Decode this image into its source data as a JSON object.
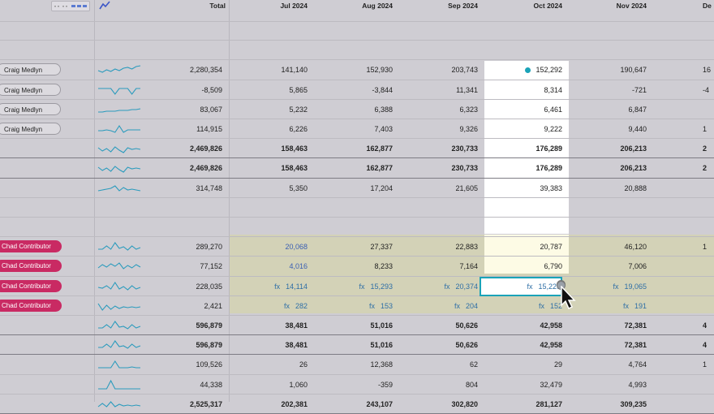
{
  "header": {
    "total_label": "Total",
    "months": [
      "Jul 2024",
      "Aug 2024",
      "Sep 2024",
      "Oct 2024",
      "Nov 2024",
      "De"
    ],
    "trend_icon": "trend-chart-icon",
    "view_toggle_icon": "view-toggle-icon"
  },
  "colors": {
    "grid_bg": "#d4d2d8",
    "contributor_band": "#d3d2b7",
    "highlight_column": "#ffffff",
    "highlight_yellow": "#fdfbe5",
    "pill_pink": "#c92a63",
    "accent_teal": "#1aa3b8",
    "sparkline": "#2b9bbd"
  },
  "rows": [
    {
      "kind": "blank"
    },
    {
      "kind": "blank"
    },
    {
      "kind": "data",
      "owner": "Craig Medlyn",
      "pill": "grey",
      "total": "2,280,354",
      "values": [
        "141,140",
        "152,930",
        "203,743",
        "152,292",
        "190,647",
        "16"
      ],
      "oct_marker": true,
      "spark": [
        10,
        12,
        9,
        11,
        8,
        10,
        7,
        6,
        8,
        5,
        4
      ]
    },
    {
      "kind": "data",
      "owner": "Craig Medlyn",
      "pill": "grey",
      "total": "-8,509",
      "values": [
        "5,865",
        "-3,844",
        "11,341",
        "8,314",
        "-721",
        "-4"
      ],
      "spark": [
        7,
        7,
        7,
        7,
        14,
        7,
        7,
        7,
        14,
        7,
        7
      ]
    },
    {
      "kind": "data",
      "owner": "Craig Medlyn",
      "pill": "grey",
      "total": "83,067",
      "values": [
        "5,232",
        "6,388",
        "6,323",
        "6,461",
        "6,847",
        ""
      ],
      "spark": [
        12,
        12,
        11,
        11,
        11,
        10,
        10,
        10,
        9,
        9,
        8
      ]
    },
    {
      "kind": "data",
      "owner": "Craig Medlyn",
      "pill": "grey",
      "total": "114,915",
      "values": [
        "6,226",
        "7,403",
        "9,326",
        "9,222",
        "9,440",
        "1"
      ],
      "spark": [
        11,
        11,
        10,
        11,
        13,
        5,
        13,
        10,
        10,
        10,
        10
      ]
    },
    {
      "kind": "subtotal",
      "total": "2,469,826",
      "values": [
        "158,463",
        "162,877",
        "230,733",
        "176,289",
        "206,213",
        "2"
      ],
      "spark": [
        8,
        12,
        9,
        13,
        7,
        11,
        14,
        8,
        10,
        9,
        10
      ]
    },
    {
      "kind": "subtotal",
      "total": "2,469,826",
      "values": [
        "158,463",
        "162,877",
        "230,733",
        "176,289",
        "206,213",
        "2"
      ],
      "spark": [
        8,
        12,
        9,
        13,
        7,
        11,
        14,
        8,
        10,
        9,
        10
      ]
    },
    {
      "kind": "plain",
      "total": "314,748",
      "values": [
        "5,350",
        "17,204",
        "21,605",
        "39,383",
        "20,888",
        ""
      ],
      "spark": [
        12,
        11,
        10,
        9,
        6,
        12,
        8,
        11,
        10,
        11,
        12
      ]
    },
    {
      "kind": "blank"
    },
    {
      "kind": "blank"
    },
    {
      "kind": "contrib",
      "owner": "Chad Contributor",
      "total": "289,270",
      "values": [
        "20,068",
        "27,337",
        "22,883",
        "20,787",
        "46,120",
        "1"
      ],
      "blue_first": true,
      "spark": [
        12,
        12,
        8,
        12,
        4,
        11,
        9,
        13,
        8,
        12,
        10
      ]
    },
    {
      "kind": "contrib",
      "owner": "Chad Contributor",
      "total": "77,152",
      "values": [
        "4,016",
        "8,233",
        "7,164",
        "6,790",
        "7,006",
        ""
      ],
      "blue_first": true,
      "spark": [
        11,
        7,
        10,
        6,
        9,
        5,
        12,
        8,
        11,
        7,
        10
      ]
    },
    {
      "kind": "contrib_fx",
      "owner": "Chad Contributor",
      "total": "228,035",
      "values": [
        "14,114",
        "15,293",
        "20,374",
        "15,229",
        "19,065",
        ""
      ],
      "fx_label": "fx",
      "spark": [
        10,
        11,
        8,
        12,
        4,
        12,
        9,
        13,
        8,
        12,
        10
      ]
    },
    {
      "kind": "contrib_fx",
      "owner": "Chad Contributor",
      "total": "2,421",
      "values": [
        "282",
        "153",
        "204",
        "152",
        "191",
        ""
      ],
      "fx_label": "fx",
      "spark": [
        6,
        14,
        8,
        13,
        9,
        12,
        10,
        11,
        10,
        11,
        10
      ]
    },
    {
      "kind": "subtotal",
      "total": "596,879",
      "values": [
        "38,481",
        "51,016",
        "50,626",
        "42,958",
        "72,381",
        "4"
      ],
      "spark": [
        12,
        12,
        8,
        12,
        4,
        11,
        10,
        13,
        8,
        12,
        10
      ]
    },
    {
      "kind": "subtotal",
      "total": "596,879",
      "values": [
        "38,481",
        "51,016",
        "50,626",
        "42,958",
        "72,381",
        "4"
      ],
      "spark": [
        12,
        12,
        8,
        12,
        4,
        11,
        10,
        13,
        8,
        12,
        10
      ]
    },
    {
      "kind": "plain",
      "total": "109,526",
      "values": [
        "26",
        "12,368",
        "62",
        "29",
        "4,764",
        "1"
      ],
      "spark": [
        13,
        13,
        13,
        13,
        5,
        13,
        13,
        13,
        12,
        13,
        13
      ]
    },
    {
      "kind": "plain",
      "total": "44,338",
      "values": [
        "1,060",
        "-359",
        "804",
        "32,479",
        "4,993",
        ""
      ],
      "spark": [
        14,
        14,
        14,
        4,
        14,
        14,
        14,
        14,
        14,
        14,
        14
      ]
    },
    {
      "kind": "subtotal",
      "total": "2,525,317",
      "values": [
        "202,381",
        "243,107",
        "302,820",
        "281,127",
        "309,235",
        ""
      ],
      "spark": [
        12,
        8,
        12,
        6,
        12,
        9,
        11,
        10,
        11,
        10,
        11
      ]
    }
  ]
}
